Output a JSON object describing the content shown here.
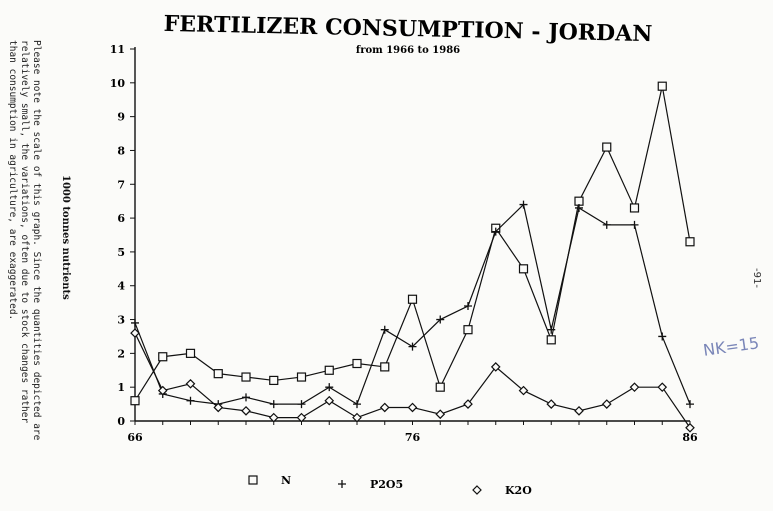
{
  "header": {
    "title": "FERTILIZER CONSUMPTION  -  JORDAN",
    "subtitle": "from 1966 to 1986"
  },
  "note": {
    "lines": [
      "Please note the scale of this graph. Since the quantities depicted are",
      "relatively small, the variations, often due to stock changes rather",
      "than consumption in agriculture, are exaggerated."
    ]
  },
  "page_number": "-91-",
  "handwritten_note": "NK=15",
  "chart_data": {
    "type": "line",
    "title": "FERTILIZER CONSUMPTION  -  JORDAN",
    "subtitle": "from 1966 to 1986",
    "ylabel": "1000 tonnes nutrients",
    "xlabel": "",
    "x": [
      66,
      67,
      68,
      69,
      70,
      71,
      72,
      73,
      74,
      75,
      76,
      77,
      78,
      79,
      80,
      81,
      82,
      83,
      84,
      85,
      86
    ],
    "x_tick_labels": [
      {
        "x": 66,
        "label": "66"
      },
      {
        "x": 76,
        "label": "76"
      },
      {
        "x": 86,
        "label": "86"
      }
    ],
    "y_ticks": [
      0,
      1,
      2,
      3,
      4,
      5,
      6,
      7,
      8,
      9,
      10,
      11
    ],
    "xlim": [
      66,
      86
    ],
    "ylim": [
      0,
      11
    ],
    "grid": false,
    "legend_position": "bottom",
    "series": [
      {
        "name": "N",
        "marker": "square",
        "values": [
          0.6,
          1.9,
          2.0,
          1.4,
          1.3,
          1.2,
          1.3,
          1.5,
          1.7,
          1.6,
          3.6,
          1.0,
          2.7,
          5.7,
          4.5,
          2.4,
          6.5,
          8.1,
          6.3,
          9.9,
          5.3
        ]
      },
      {
        "name": "P2O5",
        "marker": "plus",
        "values": [
          2.9,
          0.8,
          0.6,
          0.5,
          0.7,
          0.5,
          0.5,
          1.0,
          0.5,
          2.7,
          2.2,
          3.0,
          3.4,
          5.6,
          6.4,
          2.7,
          6.3,
          5.8,
          5.8,
          2.5,
          0.5
        ]
      },
      {
        "name": "K2O",
        "marker": "diamond",
        "values": [
          2.6,
          0.9,
          1.1,
          0.4,
          0.3,
          0.1,
          0.1,
          0.6,
          0.1,
          0.4,
          0.4,
          0.2,
          0.5,
          1.6,
          0.9,
          0.5,
          0.3,
          0.5,
          1.0,
          1.0,
          -0.2
        ]
      }
    ]
  }
}
